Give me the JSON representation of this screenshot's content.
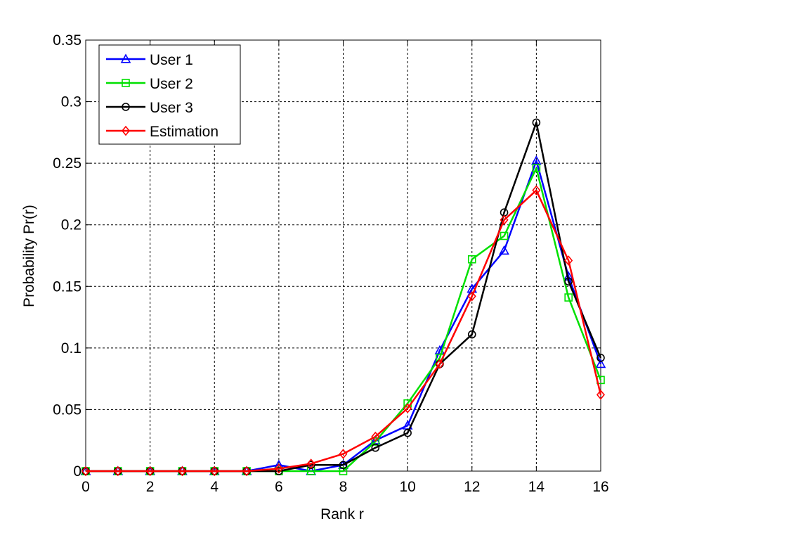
{
  "chart_data": {
    "type": "line",
    "title": "",
    "xlabel": "Rank r",
    "ylabel": "Probability Pr(r)",
    "xlim": [
      0,
      16
    ],
    "ylim": [
      0,
      0.35
    ],
    "xticks": [
      0,
      2,
      4,
      6,
      8,
      10,
      12,
      14,
      16
    ],
    "yticks": [
      0,
      0.05,
      0.1,
      0.15,
      0.2,
      0.25,
      0.3,
      0.35
    ],
    "xtick_labels": [
      "0",
      "2",
      "4",
      "6",
      "8",
      "10",
      "12",
      "14",
      "16"
    ],
    "ytick_labels": [
      "0",
      "0.05",
      "0.1",
      "0.15",
      "0.2",
      "0.25",
      "0.3",
      "0.35"
    ],
    "grid": true,
    "legend_position": "top-left",
    "x": [
      0,
      1,
      2,
      3,
      4,
      5,
      6,
      7,
      8,
      9,
      10,
      11,
      12,
      13,
      14,
      15,
      16
    ],
    "series": [
      {
        "name": "User 1",
        "color": "#0000ff",
        "marker": "triangle",
        "values": [
          0,
          0,
          0,
          0,
          0,
          0,
          0.005,
          0,
          0.005,
          0.025,
          0.037,
          0.098,
          0.148,
          0.179,
          0.252,
          0.158,
          0.087
        ]
      },
      {
        "name": "User 2",
        "color": "#00e000",
        "marker": "square",
        "values": [
          0,
          0,
          0,
          0,
          0,
          0,
          0,
          0,
          0,
          0.024,
          0.055,
          0.092,
          0.172,
          0.191,
          0.246,
          0.141,
          0.074
        ]
      },
      {
        "name": "User 3",
        "color": "#000000",
        "marker": "circle",
        "values": [
          0,
          0,
          0,
          0,
          0,
          0,
          0,
          0.005,
          0.005,
          0.019,
          0.031,
          0.087,
          0.111,
          0.21,
          0.283,
          0.154,
          0.092
        ]
      },
      {
        "name": "Estimation",
        "color": "#ff0000",
        "marker": "diamond",
        "values": [
          0,
          0,
          0,
          0,
          0,
          0,
          0.002,
          0.006,
          0.014,
          0.028,
          0.051,
          0.087,
          0.142,
          0.204,
          0.228,
          0.171,
          0.062
        ]
      }
    ]
  }
}
